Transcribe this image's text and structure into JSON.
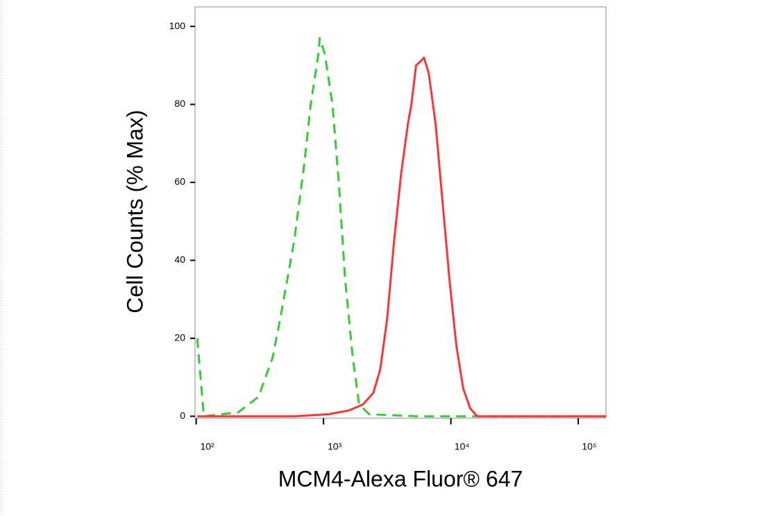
{
  "chart_data": {
    "type": "line",
    "x_label": "MCM4-Alexa Fluor® 647",
    "y_label": "Cell Counts (% Max)",
    "xscale": "log",
    "xlim": [
      98,
      165000
    ],
    "xticks": [
      {
        "value": 100,
        "label": "10²"
      },
      {
        "value": 1000,
        "label": "10³"
      },
      {
        "value": 10000,
        "label": "10⁴"
      },
      {
        "value": 100000,
        "label": "10⁵"
      }
    ],
    "ylim": [
      -0.5,
      105
    ],
    "yticks": [
      0,
      20,
      40,
      60,
      80,
      100
    ],
    "series": [
      {
        "color": "#33cc33",
        "dash": "dashed",
        "x": [
          102,
          115,
          214,
          309,
          398,
          457,
          589,
          708,
          794,
          912,
          933,
          1023,
          1175,
          1318,
          1479,
          1698,
          1905,
          2291,
          5500,
          165000
        ],
        "values": [
          20,
          0,
          1,
          5,
          15,
          25,
          45,
          65,
          80,
          93,
          97,
          93,
          80,
          60,
          35,
          15,
          3,
          0.5,
          0,
          0
        ]
      },
      {
        "color": "#ff3333",
        "dash": "solid",
        "x": [
          102,
          589,
          1091,
          1588,
          2040,
          2462,
          2789,
          3161,
          3583,
          4060,
          4600,
          4897,
          5336,
          5762,
          6142,
          6701,
          7589,
          8600,
          9747,
          11050,
          12520,
          14190,
          16080,
          165000
        ],
        "values": [
          0,
          0,
          0.5,
          1.5,
          3,
          6,
          12,
          25,
          45,
          62,
          75,
          80,
          90,
          91,
          92,
          88,
          75,
          55,
          35,
          18,
          7,
          2,
          0,
          0
        ]
      }
    ]
  }
}
